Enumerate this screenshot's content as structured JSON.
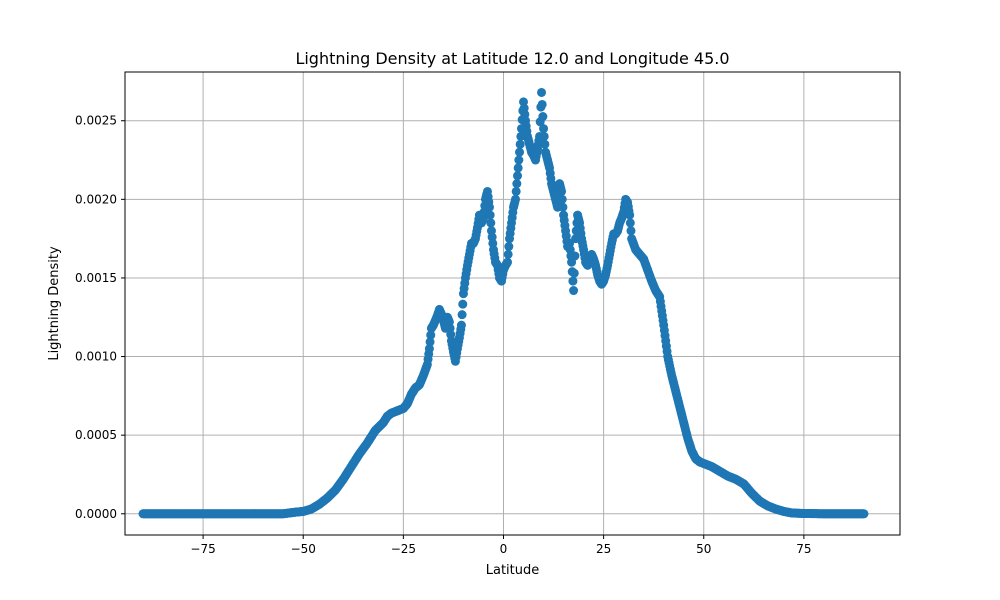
{
  "chart_data": {
    "type": "scatter",
    "title": "Lightning Density at Latitude 12.0 and Longitude 45.0",
    "xlabel": "Latitude",
    "ylabel": "Lightning Density",
    "xlim": [
      -94.5,
      99
    ],
    "ylim": [
      -0.000135,
      0.00281
    ],
    "xticks": [
      -75,
      -50,
      -25,
      0,
      25,
      50,
      75
    ],
    "xtick_labels": [
      "−75",
      "−50",
      "−25",
      "0",
      "25",
      "50",
      "75"
    ],
    "yticks": [
      0,
      0.0005,
      0.001,
      0.0015,
      0.002,
      0.0025
    ],
    "ytick_labels": [
      "0.0000",
      "0.0005",
      "0.0010",
      "0.0015",
      "0.0020",
      "0.0025"
    ],
    "grid": true,
    "marker_color": "#1f77b4",
    "series": [
      {
        "x": [
          -90,
          -80,
          -70,
          -60,
          -55,
          -52,
          -50,
          -48,
          -46,
          -44,
          -42,
          -40,
          -38,
          -36,
          -34,
          -32,
          -30,
          -29,
          -28,
          -27,
          -26,
          -25,
          -24,
          -23,
          -22,
          -21,
          -20,
          -19,
          -18.5,
          -18,
          -17.5,
          -17,
          -16.5,
          -16,
          -15.5,
          -15,
          -14.5,
          -14,
          -13.5,
          -13,
          -12.5,
          -12,
          -11.5,
          -11,
          -10.5,
          -10,
          -9.5,
          -9,
          -8.5,
          -8,
          -7.5,
          -7,
          -6.5,
          -6,
          -5.5,
          -5,
          -4.5,
          -4,
          -3.5,
          -3,
          -2.5,
          -2,
          -1.5,
          -1,
          -0.5,
          0,
          0.5,
          1,
          1.5,
          2,
          2.5,
          3,
          3.5,
          4,
          4.5,
          5,
          5.5,
          6,
          6.5,
          7,
          7.5,
          8,
          8.5,
          9,
          9.5,
          10,
          10.5,
          11,
          11.5,
          12,
          12.5,
          13,
          13.5,
          14,
          14.5,
          15,
          15.5,
          16,
          16.5,
          17,
          17.5,
          18,
          18.5,
          19,
          19.5,
          20,
          20.5,
          21,
          21.5,
          22,
          22.5,
          23,
          23.5,
          24,
          24.5,
          25,
          25.5,
          26,
          26.5,
          27,
          27.5,
          28,
          28.5,
          29,
          29.5,
          30,
          30.5,
          31,
          31.5,
          32,
          33,
          34,
          35,
          36,
          37,
          38,
          39,
          40,
          41,
          42,
          43,
          44,
          45,
          46,
          47,
          48,
          49,
          50,
          52,
          54,
          56,
          58,
          60,
          62,
          64,
          66,
          68,
          70,
          72,
          75,
          80,
          85,
          90
        ],
        "y": [
          0,
          0,
          0,
          0,
          0,
          1e-05,
          1.5e-05,
          3e-05,
          6e-05,
          0.0001,
          0.00015,
          0.00022,
          0.0003,
          0.00038,
          0.00045,
          0.00053,
          0.00058,
          0.00062,
          0.00064,
          0.00065,
          0.00066,
          0.00067,
          0.0007,
          0.00076,
          0.0008,
          0.00082,
          0.00088,
          0.00095,
          0.00105,
          0.00118,
          0.0012,
          0.00123,
          0.00126,
          0.0013,
          0.00127,
          0.00123,
          0.00118,
          0.00125,
          0.00122,
          0.0011,
          0.00103,
          0.00097,
          0.00105,
          0.00112,
          0.0012,
          0.0014,
          0.0015,
          0.00158,
          0.00165,
          0.00172,
          0.00172,
          0.00175,
          0.00182,
          0.0019,
          0.00185,
          0.00188,
          0.002,
          0.00205,
          0.00195,
          0.0018,
          0.00168,
          0.0016,
          0.00158,
          0.0015,
          0.00148,
          0.00155,
          0.00158,
          0.0016,
          0.00175,
          0.00185,
          0.00195,
          0.002,
          0.00215,
          0.0023,
          0.00245,
          0.00262,
          0.0025,
          0.0024,
          0.00235,
          0.0023,
          0.00228,
          0.00225,
          0.00232,
          0.0024,
          0.00268,
          0.00245,
          0.0023,
          0.00225,
          0.0022,
          0.0021,
          0.00205,
          0.002,
          0.00195,
          0.0021,
          0.00205,
          0.0019,
          0.0018,
          0.0017,
          0.00172,
          0.0016,
          0.00142,
          0.00175,
          0.0019,
          0.00185,
          0.00175,
          0.00168,
          0.0016,
          0.00158,
          0.0016,
          0.00165,
          0.00162,
          0.00158,
          0.00152,
          0.00148,
          0.00146,
          0.00148,
          0.00152,
          0.00158,
          0.00165,
          0.00172,
          0.00178,
          0.00178,
          0.0018,
          0.00185,
          0.00188,
          0.00192,
          0.002,
          0.00198,
          0.0019,
          0.00175,
          0.00168,
          0.00165,
          0.00162,
          0.00155,
          0.00148,
          0.00142,
          0.00138,
          0.0012,
          0.001,
          0.00088,
          0.00078,
          0.00068,
          0.00058,
          0.00048,
          0.0004,
          0.00035,
          0.00033,
          0.00032,
          0.0003,
          0.00027,
          0.00024,
          0.00022,
          0.00019,
          0.00013,
          8e-05,
          5e-05,
          3e-05,
          1.5e-05,
          5e-06,
          2e-06,
          0,
          0,
          0
        ]
      }
    ]
  }
}
